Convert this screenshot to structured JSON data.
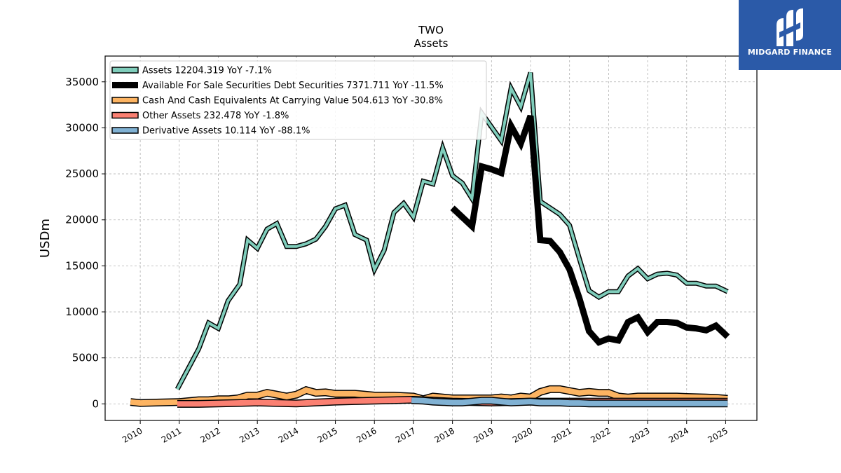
{
  "chart_data": {
    "type": "line",
    "title": "TWO",
    "subtitle": "Assets",
    "ylabel": "USDm",
    "xlabel": "",
    "xlim": [
      2009.1,
      2025.8
    ],
    "ylim": [
      -1800,
      37800
    ],
    "yticks": [
      0,
      5000,
      10000,
      15000,
      20000,
      25000,
      30000,
      35000
    ],
    "xticks": [
      "2010",
      "2011",
      "2012",
      "2013",
      "2014",
      "2015",
      "2016",
      "2017",
      "2018",
      "2019",
      "2020",
      "2021",
      "2022",
      "2023",
      "2024",
      "2025"
    ],
    "grid": true,
    "legend_position": "top-left",
    "series": [
      {
        "name": "Assets",
        "legend_label": "Assets  12204.319 YoY -7.1%",
        "color": "#7fcdbb",
        "style": "outlined",
        "x": [
          2010.95,
          2011.5,
          2011.75,
          2012.0,
          2012.25,
          2012.55,
          2012.75,
          2013.0,
          2013.25,
          2013.5,
          2013.75,
          2014.0,
          2014.25,
          2014.5,
          2014.75,
          2015.0,
          2015.25,
          2015.5,
          2015.8,
          2016.0,
          2016.25,
          2016.5,
          2016.75,
          2017.0,
          2017.25,
          2017.5,
          2017.75,
          2018.0,
          2018.25,
          2018.5,
          2018.75,
          2019.0,
          2019.25,
          2019.5,
          2019.75,
          2020.0,
          2020.25,
          2020.5,
          2020.75,
          2021.0,
          2021.25,
          2021.5,
          2021.75,
          2022.0,
          2022.25,
          2022.5,
          2022.75,
          2023.0,
          2023.25,
          2023.5,
          2023.75,
          2024.0,
          2024.25,
          2024.5,
          2024.75,
          2025.05
        ],
        "y": [
          1600,
          6000,
          8800,
          8200,
          11200,
          13000,
          17800,
          16900,
          19000,
          19600,
          17100,
          17100,
          17400,
          17900,
          19300,
          21200,
          21600,
          18400,
          17800,
          14600,
          16700,
          20800,
          21800,
          20300,
          24200,
          23900,
          27800,
          24800,
          24000,
          22300,
          31600,
          30100,
          28600,
          34300,
          32300,
          36000,
          22000,
          21300,
          20600,
          19400,
          15800,
          12300,
          11600,
          12200,
          12200,
          13900,
          14700,
          13600,
          14100,
          14200,
          14000,
          13100,
          13100,
          12800,
          12800,
          12200
        ]
      },
      {
        "name": "Available For Sale Securities Debt Securities",
        "legend_label": "Available For Sale Securities Debt Securities  7371.711 YoY -11.5%",
        "color": "#000000",
        "style": "thick",
        "x": [
          2018.0,
          2018.25,
          2018.5,
          2018.75,
          2019.0,
          2019.25,
          2019.5,
          2019.75,
          2020.0,
          2020.25,
          2020.5,
          2020.75,
          2021.0,
          2021.25,
          2021.5,
          2021.75,
          2022.0,
          2022.25,
          2022.5,
          2022.75,
          2023.0,
          2023.25,
          2023.5,
          2023.75,
          2024.0,
          2024.25,
          2024.5,
          2024.75,
          2025.05
        ],
        "y": [
          21300,
          20300,
          19300,
          25800,
          25500,
          25100,
          30200,
          28300,
          31300,
          17800,
          17700,
          16500,
          14600,
          11500,
          7900,
          6700,
          7100,
          6900,
          8900,
          9400,
          7800,
          8900,
          8900,
          8800,
          8300,
          8200,
          8000,
          8500,
          7300
        ]
      },
      {
        "name": "Cash And Cash Equivalents At Carrying Value",
        "legend_label": "Cash And Cash Equivalents At Carrying Value  504.613 YoY -30.8%",
        "color": "#fdb462",
        "style": "band",
        "x": [
          2009.75,
          2010.0,
          2010.5,
          2011.0,
          2011.5,
          2011.75,
          2012.0,
          2012.25,
          2012.5,
          2012.75,
          2013.0,
          2013.25,
          2013.5,
          2013.75,
          2014.0,
          2014.25,
          2014.5,
          2014.75,
          2015.0,
          2015.5,
          2016.0,
          2016.5,
          2016.75,
          2017.0,
          2017.25,
          2017.5,
          2017.75,
          2018.0,
          2018.25,
          2018.5,
          2018.75,
          2019.0,
          2019.25,
          2019.5,
          2019.75,
          2020.0,
          2020.25,
          2020.5,
          2020.75,
          2021.0,
          2021.25,
          2021.5,
          2021.75,
          2022.0,
          2022.25,
          2022.5,
          2022.75,
          2023.0,
          2023.5,
          2023.75,
          2024.0,
          2024.5,
          2024.75,
          2025.05
        ],
        "y": [
          200,
          100,
          150,
          200,
          400,
          400,
          500,
          500,
          600,
          900,
          900,
          1200,
          1000,
          800,
          1000,
          1500,
          1200,
          1250,
          1100,
          1100,
          900,
          900,
          850,
          800,
          500,
          800,
          700,
          600,
          600,
          600,
          600,
          600,
          700,
          600,
          800,
          700,
          1300,
          1600,
          1600,
          1400,
          1200,
          1300,
          1200,
          1200,
          800,
          700,
          800,
          800,
          800,
          800,
          750,
          700,
          650,
          550
        ]
      },
      {
        "name": "Other Assets",
        "legend_label": "Other Assets  232.478 YoY -1.8%",
        "color": "#fb8072",
        "style": "band",
        "x": [
          2010.95,
          2011.5,
          2012.0,
          2012.5,
          2013.0,
          2013.5,
          2014.0,
          2014.5,
          2015.0,
          2015.5,
          2016.0,
          2016.5,
          2016.9,
          2017.0,
          2017.5,
          2018.0,
          2018.5,
          2019.0,
          2019.5,
          2020.0,
          2020.5,
          2021.0,
          2021.5,
          2022.0,
          2022.5,
          2023.0,
          2023.5,
          2024.0,
          2024.5,
          2025.05
        ],
        "y": [
          0,
          0,
          50,
          100,
          150,
          100,
          50,
          150,
          250,
          300,
          350,
          400,
          450,
          450,
          350,
          250,
          200,
          150,
          200,
          250,
          250,
          250,
          250,
          250,
          250,
          250,
          250,
          250,
          250,
          230
        ]
      },
      {
        "name": "Derivative Assets",
        "legend_label": "Derivative Assets  10.114 YoY -88.1%",
        "color": "#80b1d3",
        "style": "band",
        "x": [
          2016.95,
          2017.25,
          2017.5,
          2017.75,
          2018.0,
          2018.25,
          2018.5,
          2018.75,
          2019.0,
          2019.25,
          2019.5,
          2019.75,
          2020.0,
          2020.25,
          2020.5,
          2020.75,
          2021.0,
          2021.25,
          2021.5,
          2021.75,
          2022.0,
          2022.25,
          2022.5,
          2022.75,
          2023.0,
          2023.25,
          2023.5,
          2023.75,
          2024.0,
          2024.25,
          2024.5,
          2024.75,
          2025.05
        ],
        "y": [
          400,
          350,
          250,
          200,
          150,
          150,
          250,
          350,
          350,
          250,
          150,
          200,
          250,
          150,
          150,
          150,
          100,
          100,
          50,
          50,
          50,
          50,
          50,
          50,
          50,
          50,
          50,
          50,
          50,
          50,
          50,
          50,
          50
        ]
      }
    ]
  },
  "logo": {
    "text": "MIDGARD FINANCE",
    "color": "#2b5aa8"
  }
}
